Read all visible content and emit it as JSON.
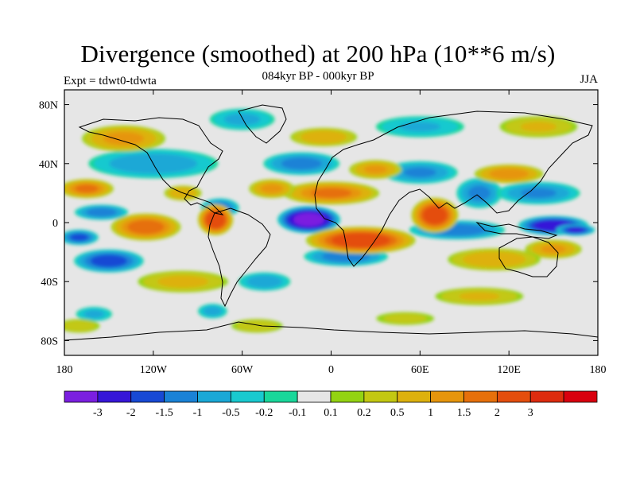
{
  "title": "Divergence (smoothed) at 200 hPa (10**6 m/s)",
  "subtitle": "084kyr BP - 000kyr BP",
  "left_label": "Expt = tdwt0-tdwta",
  "right_label": "JJA",
  "y_axis_labels": [
    "80N",
    "40N",
    "0",
    "40S",
    "80S"
  ],
  "x_axis_labels": [
    "180",
    "120W",
    "60W",
    "0",
    "60E",
    "120E",
    "180"
  ],
  "colorbar": {
    "colors": [
      "#7b1fe0",
      "#3616d8",
      "#1849d4",
      "#1a82d6",
      "#1aa8d6",
      "#19c9cf",
      "#19d79a",
      "#e6e6e6",
      "#93d312",
      "#c3c812",
      "#ddb10e",
      "#e6950c",
      "#e6700b",
      "#e44e0d",
      "#dd2c0f",
      "#d9000f"
    ],
    "labels": [
      "-3",
      "-2",
      "-1.5",
      "-1",
      "-0.5",
      "-0.2",
      "-0.1",
      "0.1",
      "0.2",
      "0.5",
      "1",
      "1.5",
      "2",
      "3"
    ]
  },
  "map_fields": [
    {
      "lon": -15,
      "lat": 2,
      "value": -3.4,
      "rx": 16,
      "ry": 7
    },
    {
      "lon": 150,
      "lat": -2,
      "value": -2.6,
      "rx": 18,
      "ry": 5
    },
    {
      "lon": 165,
      "lat": -5,
      "value": -2.0,
      "rx": 10,
      "ry": 3
    },
    {
      "lon": -150,
      "lat": -26,
      "value": -1.8,
      "rx": 18,
      "ry": 6
    },
    {
      "lon": -170,
      "lat": -10,
      "value": -1.6,
      "rx": 10,
      "ry": 4
    },
    {
      "lon": -75,
      "lat": 10,
      "value": -1.4,
      "rx": 10,
      "ry": 5
    },
    {
      "lon": -155,
      "lat": 7,
      "value": -1.3,
      "rx": 14,
      "ry": 4
    },
    {
      "lon": -20,
      "lat": 40,
      "value": -1.2,
      "rx": 20,
      "ry": 6
    },
    {
      "lon": 10,
      "lat": -23,
      "value": -1.3,
      "rx": 22,
      "ry": 5
    },
    {
      "lon": 85,
      "lat": -5,
      "value": -1.4,
      "rx": 25,
      "ry": 5
    },
    {
      "lon": 100,
      "lat": 20,
      "value": -1.1,
      "rx": 12,
      "ry": 8
    },
    {
      "lon": 60,
      "lat": 34,
      "value": -1.0,
      "rx": 20,
      "ry": 6
    },
    {
      "lon": 140,
      "lat": 20,
      "value": -1.0,
      "rx": 22,
      "ry": 6
    },
    {
      "lon": -120,
      "lat": 40,
      "value": -0.8,
      "rx": 35,
      "ry": 8
    },
    {
      "lon": -60,
      "lat": 70,
      "value": -0.6,
      "rx": 18,
      "ry": 6
    },
    {
      "lon": 60,
      "lat": 65,
      "value": -0.5,
      "rx": 25,
      "ry": 6
    },
    {
      "lon": -45,
      "lat": -40,
      "value": -0.8,
      "rx": 14,
      "ry": 5
    },
    {
      "lon": -160,
      "lat": -62,
      "value": -0.6,
      "rx": 10,
      "ry": 4
    },
    {
      "lon": -80,
      "lat": -60,
      "value": -0.7,
      "rx": 8,
      "ry": 4
    },
    {
      "lon": -78,
      "lat": 2,
      "value": 2.6,
      "rx": 9,
      "ry": 8
    },
    {
      "lon": 20,
      "lat": -12,
      "value": 2.5,
      "rx": 28,
      "ry": 7
    },
    {
      "lon": 70,
      "lat": 5,
      "value": 2.4,
      "rx": 12,
      "ry": 9
    },
    {
      "lon": -125,
      "lat": -3,
      "value": 1.8,
      "rx": 18,
      "ry": 7
    },
    {
      "lon": -165,
      "lat": 23,
      "value": 1.5,
      "rx": 14,
      "ry": 5
    },
    {
      "lon": 0,
      "lat": 20,
      "value": 1.5,
      "rx": 25,
      "ry": 6
    },
    {
      "lon": 120,
      "lat": 33,
      "value": 1.3,
      "rx": 18,
      "ry": 5
    },
    {
      "lon": 30,
      "lat": 36,
      "value": 1.0,
      "rx": 14,
      "ry": 5
    },
    {
      "lon": -40,
      "lat": 23,
      "value": 1.1,
      "rx": 12,
      "ry": 5
    },
    {
      "lon": 150,
      "lat": -18,
      "value": 1.0,
      "rx": 15,
      "ry": 5
    },
    {
      "lon": -140,
      "lat": 57,
      "value": 1.1,
      "rx": 22,
      "ry": 7
    },
    {
      "lon": 110,
      "lat": -25,
      "value": 0.8,
      "rx": 25,
      "ry": 6
    },
    {
      "lon": -5,
      "lat": 58,
      "value": 0.8,
      "rx": 18,
      "ry": 5
    },
    {
      "lon": -100,
      "lat": 20,
      "value": 0.9,
      "rx": 10,
      "ry": 4
    },
    {
      "lon": -100,
      "lat": -40,
      "value": 0.6,
      "rx": 25,
      "ry": 6
    },
    {
      "lon": 100,
      "lat": -50,
      "value": 0.5,
      "rx": 25,
      "ry": 5
    },
    {
      "lon": 140,
      "lat": 65,
      "value": 0.5,
      "rx": 22,
      "ry": 6
    },
    {
      "lon": -170,
      "lat": -70,
      "value": 0.4,
      "rx": 12,
      "ry": 4
    },
    {
      "lon": -50,
      "lat": -70,
      "value": 0.4,
      "rx": 15,
      "ry": 4
    },
    {
      "lon": 50,
      "lat": -65,
      "value": 0.3,
      "rx": 18,
      "ry": 4
    }
  ]
}
